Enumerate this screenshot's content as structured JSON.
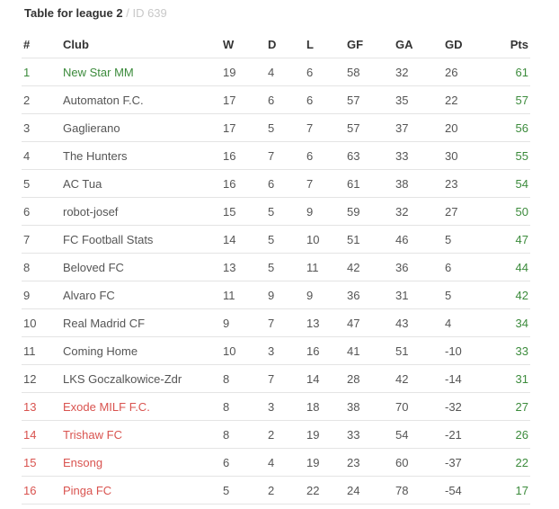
{
  "title": {
    "main": "Table for league 2",
    "separator": "/",
    "id": "ID 639"
  },
  "columns": [
    "#",
    "Club",
    "W",
    "D",
    "L",
    "GF",
    "GA",
    "GD",
    "Pts"
  ],
  "colors": {
    "promotion": "#3c8b3c",
    "relegation": "#d9534f",
    "points": "#3c8b3c"
  },
  "rows": [
    {
      "rank": "1",
      "club": "New Star MM",
      "w": "19",
      "d": "4",
      "l": "6",
      "gf": "58",
      "ga": "32",
      "gd": "26",
      "pts": "61",
      "zone": "promo"
    },
    {
      "rank": "2",
      "club": "Automaton F.C.",
      "w": "17",
      "d": "6",
      "l": "6",
      "gf": "57",
      "ga": "35",
      "gd": "22",
      "pts": "57",
      "zone": ""
    },
    {
      "rank": "3",
      "club": "Gaglierano",
      "w": "17",
      "d": "5",
      "l": "7",
      "gf": "57",
      "ga": "37",
      "gd": "20",
      "pts": "56",
      "zone": ""
    },
    {
      "rank": "4",
      "club": "The Hunters",
      "w": "16",
      "d": "7",
      "l": "6",
      "gf": "63",
      "ga": "33",
      "gd": "30",
      "pts": "55",
      "zone": ""
    },
    {
      "rank": "5",
      "club": "AC Tua",
      "w": "16",
      "d": "6",
      "l": "7",
      "gf": "61",
      "ga": "38",
      "gd": "23",
      "pts": "54",
      "zone": ""
    },
    {
      "rank": "6",
      "club": "robot-josef",
      "w": "15",
      "d": "5",
      "l": "9",
      "gf": "59",
      "ga": "32",
      "gd": "27",
      "pts": "50",
      "zone": ""
    },
    {
      "rank": "7",
      "club": "FC Football Stats",
      "w": "14",
      "d": "5",
      "l": "10",
      "gf": "51",
      "ga": "46",
      "gd": "5",
      "pts": "47",
      "zone": ""
    },
    {
      "rank": "8",
      "club": "Beloved FC",
      "w": "13",
      "d": "5",
      "l": "11",
      "gf": "42",
      "ga": "36",
      "gd": "6",
      "pts": "44",
      "zone": ""
    },
    {
      "rank": "9",
      "club": "Alvaro FC",
      "w": "11",
      "d": "9",
      "l": "9",
      "gf": "36",
      "ga": "31",
      "gd": "5",
      "pts": "42",
      "zone": ""
    },
    {
      "rank": "10",
      "club": "Real Madrid CF",
      "w": "9",
      "d": "7",
      "l": "13",
      "gf": "47",
      "ga": "43",
      "gd": "4",
      "pts": "34",
      "zone": ""
    },
    {
      "rank": "11",
      "club": "Coming Home",
      "w": "10",
      "d": "3",
      "l": "16",
      "gf": "41",
      "ga": "51",
      "gd": "-10",
      "pts": "33",
      "zone": ""
    },
    {
      "rank": "12",
      "club": "LKS Goczalkowice-Zdr",
      "w": "8",
      "d": "7",
      "l": "14",
      "gf": "28",
      "ga": "42",
      "gd": "-14",
      "pts": "31",
      "zone": ""
    },
    {
      "rank": "13",
      "club": "Exode MILF F.C.",
      "w": "8",
      "d": "3",
      "l": "18",
      "gf": "38",
      "ga": "70",
      "gd": "-32",
      "pts": "27",
      "zone": "releg"
    },
    {
      "rank": "14",
      "club": "Trishaw FC",
      "w": "8",
      "d": "2",
      "l": "19",
      "gf": "33",
      "ga": "54",
      "gd": "-21",
      "pts": "26",
      "zone": "releg"
    },
    {
      "rank": "15",
      "club": "Ensong",
      "w": "6",
      "d": "4",
      "l": "19",
      "gf": "23",
      "ga": "60",
      "gd": "-37",
      "pts": "22",
      "zone": "releg"
    },
    {
      "rank": "16",
      "club": "Pinga FC",
      "w": "5",
      "d": "2",
      "l": "22",
      "gf": "24",
      "ga": "78",
      "gd": "-54",
      "pts": "17",
      "zone": "releg"
    }
  ]
}
